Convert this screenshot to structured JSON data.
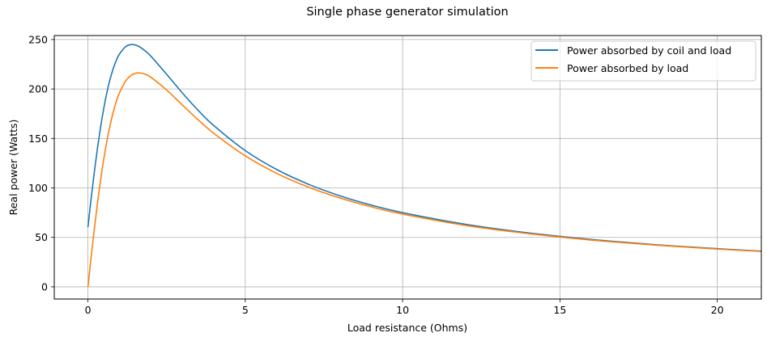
{
  "chart_data": {
    "type": "line",
    "title": "Single phase generator simulation",
    "xlabel": "Load resistance (Ohms)",
    "ylabel": "Real power (Watts)",
    "xlim": [
      -1.07,
      21.4
    ],
    "ylim": [
      -12.3,
      254
    ],
    "xticks": [
      0,
      5,
      10,
      15,
      20
    ],
    "yticks": [
      0,
      50,
      100,
      150,
      200,
      250
    ],
    "xtick_labels": [
      "0",
      "5",
      "10",
      "15",
      "20"
    ],
    "ytick_labels": [
      "0",
      "50",
      "100",
      "150",
      "200",
      "250"
    ],
    "grid": true,
    "legend_position": "top-right",
    "x": [
      0,
      0.1,
      0.2,
      0.3,
      0.4,
      0.5,
      0.6,
      0.7,
      0.8,
      0.9,
      1.0,
      1.2,
      1.4,
      1.6,
      1.8,
      2.0,
      2.5,
      3.0,
      3.5,
      4.0,
      5,
      6,
      7,
      8,
      9,
      10,
      12,
      14,
      16,
      18,
      20,
      21.4
    ],
    "series": [
      {
        "name": "Power absorbed by coil and load",
        "color": "#1f77b4",
        "values": [
          60.3,
          88.8,
          115.3,
          139.5,
          161.1,
          179.9,
          196.0,
          209.4,
          220.2,
          228.8,
          235.2,
          242.8,
          245.0,
          243.3,
          239.0,
          233.1,
          214.9,
          196.0,
          178.5,
          163.0,
          137.7,
          118.6,
          103.8,
          92.1,
          82.7,
          75.0,
          63.2,
          54.5,
          47.9,
          42.7,
          38.6,
          36.1
        ]
      },
      {
        "name": "Power absorbed by load",
        "color": "#ff7f0e",
        "values": [
          0,
          29.6,
          57.6,
          83.7,
          107.4,
          128.5,
          147.0,
          162.8,
          176.2,
          187.2,
          196.0,
          208.1,
          214.4,
          216.3,
          215.1,
          211.9,
          199.0,
          183.8,
          168.9,
          155.2,
          132.4,
          114.7,
          100.9,
          89.9,
          80.9,
          73.5,
          62.1,
          53.8,
          47.3,
          42.3,
          38.2,
          35.8
        ]
      }
    ]
  }
}
